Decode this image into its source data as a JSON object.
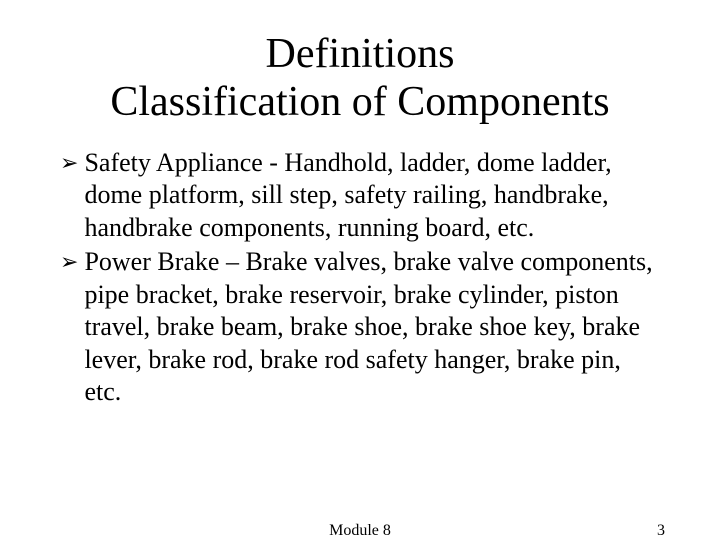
{
  "title": {
    "line1": "Definitions",
    "line2": "Classification of Components"
  },
  "bullets": [
    {
      "marker": "➢",
      "text": "Safety Appliance  - Handhold, ladder, dome ladder, dome platform, sill step, safety railing, handbrake, handbrake components, running board, etc."
    },
    {
      "marker": "➢",
      "text": "Power Brake – Brake valves, brake valve components, pipe bracket, brake reservoir, brake cylinder, piston travel, brake beam, brake shoe, brake shoe key, brake lever, brake rod, brake rod safety hanger, brake pin, etc."
    }
  ],
  "footer": {
    "module": "Module 8",
    "page": "3"
  }
}
